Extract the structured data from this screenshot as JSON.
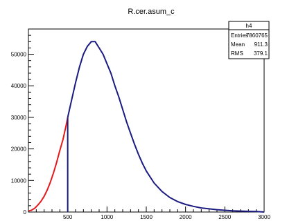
{
  "chart_data": {
    "type": "line",
    "title": "R.cer.asum_c",
    "xlim": [
      0,
      3000
    ],
    "ylim": [
      0,
      58000
    ],
    "x_ticks": [
      500,
      1000,
      1500,
      2000,
      2500,
      3000
    ],
    "y_ticks": [
      0,
      10000,
      20000,
      30000,
      40000,
      50000
    ],
    "grid": false,
    "series": [
      {
        "color": "#e31a1c",
        "x": [
          0,
          40,
          80,
          120,
          160,
          200,
          240,
          280,
          320,
          360,
          400,
          440,
          480,
          500
        ],
        "y": [
          300,
          600,
          1200,
          2200,
          3400,
          5000,
          7000,
          9500,
          12500,
          15800,
          19500,
          23000,
          27500,
          30000
        ]
      },
      {
        "color": "#1a1a80",
        "x": [
          500,
          550,
          600,
          650,
          700,
          750,
          800,
          850,
          900,
          950,
          1000,
          1050,
          1100,
          1150,
          1200,
          1250,
          1300,
          1350,
          1400,
          1450,
          1500,
          1600,
          1700,
          1800,
          1900,
          2000,
          2100,
          2200,
          2300,
          2400,
          2500,
          2600,
          2700,
          2800,
          2900,
          3000
        ],
        "y": [
          30000,
          35500,
          41000,
          46000,
          50000,
          52500,
          54000,
          54000,
          52000,
          50000,
          47000,
          44000,
          40000,
          36500,
          32500,
          28500,
          25000,
          21500,
          18300,
          15500,
          13000,
          9200,
          6500,
          4600,
          3300,
          2400,
          1800,
          1300,
          1000,
          750,
          550,
          400,
          300,
          220,
          150,
          0
        ]
      }
    ],
    "legend": {
      "position": "top-right",
      "name": "h4",
      "entries_label": "Entries",
      "entries_value": "7860765",
      "mean_label": "Mean",
      "mean_value": "911.3",
      "rms_label": "RMS",
      "rms_value": "379.1"
    }
  }
}
